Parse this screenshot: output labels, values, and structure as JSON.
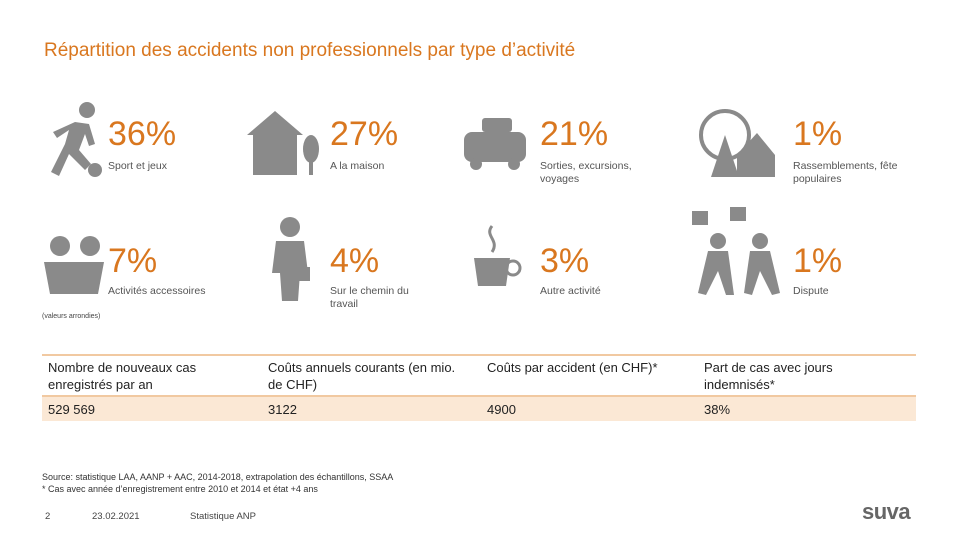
{
  "header": {
    "title": "Répartition des accidents non professionnels par type d’activité"
  },
  "activities": [
    {
      "percent": "36%",
      "label": "Sport et jeux"
    },
    {
      "percent": "27%",
      "label": "A la maison"
    },
    {
      "percent": "21%",
      "label": "Sorties, excursions, voyages"
    },
    {
      "percent": "1%",
      "label": "Rassemblements, fête populaires"
    },
    {
      "percent": "7%",
      "label": "Activités accessoires"
    },
    {
      "percent": "4%",
      "label": "Sur le chemin du travail"
    },
    {
      "percent": "3%",
      "label": "Autre activité"
    },
    {
      "percent": "1%",
      "label": "Dispute"
    }
  ],
  "note": "(valeurs arrondies)",
  "table": {
    "header": [
      "Nombre de nouveaux cas enregistrés par an",
      "Coûts annuels courants (en mio. de CHF)",
      "Coûts par accident (en CHF)*",
      "Part de cas avec jours indemnisés*"
    ],
    "rows": [
      [
        "529 569",
        "3122",
        "4900",
        "38%"
      ]
    ]
  },
  "source": [
    "Source: statistique LAA, AANP + AAC, 2014-2018, extrapolation des échantillons, SSAA",
    "* Cas avec année d’enregistrement entre 2010 et 2014 et état +4 ans"
  ],
  "footer": {
    "page": "2",
    "date": "23.02.2021",
    "label": "Statistique ANP",
    "logo": "suva"
  }
}
